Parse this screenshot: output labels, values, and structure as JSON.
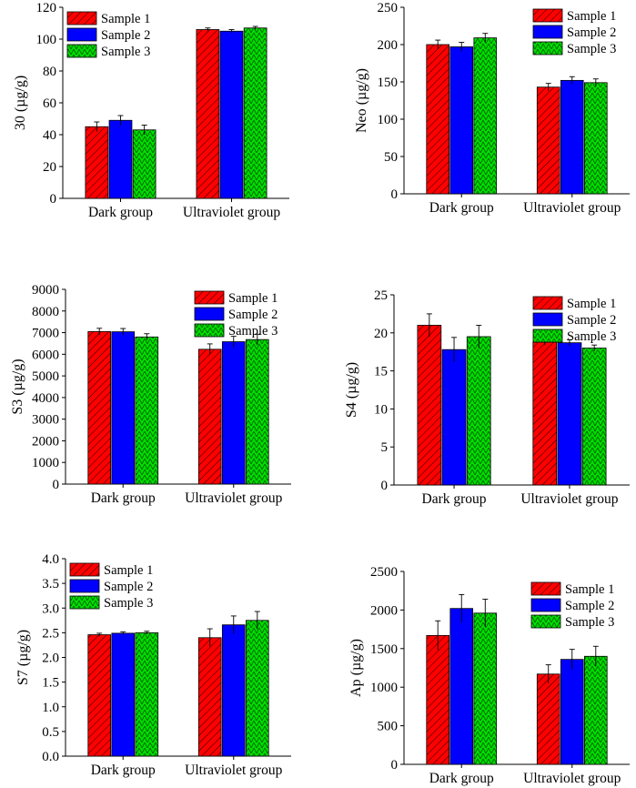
{
  "sample_colors": [
    "#ff0000",
    "#0000ff",
    "#00dd00"
  ],
  "chart_data": [
    {
      "type": "bar",
      "ylabel": "30 (µg/g)",
      "categories": [
        "Dark group",
        "Ultraviolet group"
      ],
      "ylim": [
        0,
        120
      ],
      "yticks": [
        0,
        20,
        40,
        60,
        80,
        100,
        120
      ],
      "legend_position": "top-left",
      "series": [
        {
          "name": "Sample 1",
          "values": [
            45,
            106
          ],
          "errors": [
            3,
            1
          ]
        },
        {
          "name": "Sample 2",
          "values": [
            49,
            105
          ],
          "errors": [
            3,
            1
          ]
        },
        {
          "name": "Sample 3",
          "values": [
            43,
            107
          ],
          "errors": [
            3,
            1
          ]
        }
      ]
    },
    {
      "type": "bar",
      "ylabel": "Neo (µg/g)",
      "categories": [
        "Dark group",
        "Ultraviolet group"
      ],
      "ylim": [
        0,
        250
      ],
      "yticks": [
        0,
        50,
        100,
        150,
        200,
        250
      ],
      "legend_position": "top-right",
      "series": [
        {
          "name": "Sample 1",
          "values": [
            200,
            143
          ],
          "errors": [
            6,
            5
          ]
        },
        {
          "name": "Sample 2",
          "values": [
            197,
            152
          ],
          "errors": [
            6,
            5
          ]
        },
        {
          "name": "Sample 3",
          "values": [
            209,
            149
          ],
          "errors": [
            6,
            5
          ]
        }
      ]
    },
    {
      "type": "bar",
      "ylabel": "S3 (µg/g)",
      "categories": [
        "Dark group",
        "Ultraviolet group"
      ],
      "ylim": [
        0,
        9000
      ],
      "yticks": [
        0,
        1000,
        2000,
        3000,
        4000,
        5000,
        6000,
        7000,
        8000,
        9000
      ],
      "legend_position": "top-right",
      "series": [
        {
          "name": "Sample 1",
          "values": [
            7050,
            6230
          ],
          "errors": [
            150,
            250
          ]
        },
        {
          "name": "Sample 2",
          "values": [
            7040,
            6580
          ],
          "errors": [
            150,
            250
          ]
        },
        {
          "name": "Sample 3",
          "values": [
            6800,
            6680
          ],
          "errors": [
            150,
            250
          ]
        }
      ]
    },
    {
      "type": "bar",
      "ylabel": "S4 (µg/g)",
      "categories": [
        "Dark group",
        "Ultraviolet group"
      ],
      "ylim": [
        0,
        25
      ],
      "yticks": [
        0,
        5,
        10,
        15,
        20,
        25
      ],
      "legend_position": "top-right",
      "series": [
        {
          "name": "Sample 1",
          "values": [
            21.0,
            18.8
          ],
          "errors": [
            1.5,
            0.4
          ]
        },
        {
          "name": "Sample 2",
          "values": [
            17.8,
            18.7
          ],
          "errors": [
            1.6,
            0.4
          ]
        },
        {
          "name": "Sample 3",
          "values": [
            19.5,
            18.0
          ],
          "errors": [
            1.5,
            0.4
          ]
        }
      ]
    },
    {
      "type": "bar",
      "ylabel": "S7 (µg/g)",
      "categories": [
        "Dark group",
        "Ultraviolet group"
      ],
      "ylim": [
        0,
        4.0
      ],
      "yticks": [
        "0.0",
        "0.5",
        "1.0",
        "1.5",
        "2.0",
        "2.5",
        "3.0",
        "3.5",
        "4.0"
      ],
      "legend_position": "top-left",
      "series": [
        {
          "name": "Sample 1",
          "values": [
            2.46,
            2.4
          ],
          "errors": [
            0.03,
            0.18
          ]
        },
        {
          "name": "Sample 2",
          "values": [
            2.49,
            2.66
          ],
          "errors": [
            0.03,
            0.18
          ]
        },
        {
          "name": "Sample 3",
          "values": [
            2.5,
            2.75
          ],
          "errors": [
            0.03,
            0.18
          ]
        }
      ]
    },
    {
      "type": "bar",
      "ylabel": "Ap (µg/g)",
      "categories": [
        "Dark group",
        "Ultraviolet group"
      ],
      "ylim": [
        0,
        2500
      ],
      "yticks": [
        0,
        500,
        1000,
        1500,
        2000,
        2500
      ],
      "legend_position": "right",
      "series": [
        {
          "name": "Sample 1",
          "values": [
            1670,
            1170
          ],
          "errors": [
            190,
            120
          ]
        },
        {
          "name": "Sample 2",
          "values": [
            2020,
            1360
          ],
          "errors": [
            180,
            130
          ]
        },
        {
          "name": "Sample 3",
          "values": [
            1960,
            1400
          ],
          "errors": [
            180,
            130
          ]
        }
      ]
    }
  ]
}
